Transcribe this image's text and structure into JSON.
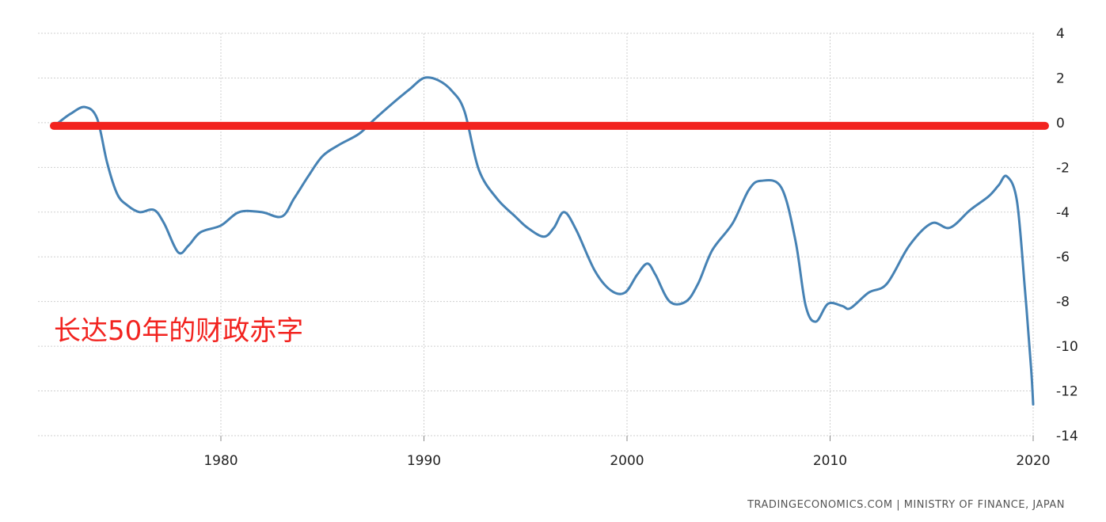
{
  "chart_data": {
    "type": "line",
    "xlim": [
      1971.0,
      2021.0
    ],
    "ylim": [
      -14,
      4
    ],
    "x_ticks": [
      1980,
      1990,
      2000,
      2010,
      2020
    ],
    "y_ticks": [
      4,
      2,
      0,
      -2,
      -4,
      -6,
      -8,
      -10,
      -12,
      -14
    ],
    "grid": true,
    "series": [
      {
        "color": "#4682b4",
        "points": [
          [
            1972.0,
            0.0
          ],
          [
            1972.6,
            0.4
          ],
          [
            1973.3,
            0.7
          ],
          [
            1973.9,
            0.2
          ],
          [
            1974.4,
            -1.8
          ],
          [
            1974.9,
            -3.2
          ],
          [
            1975.4,
            -3.7
          ],
          [
            1976.0,
            -4.0
          ],
          [
            1976.7,
            -3.9
          ],
          [
            1977.2,
            -4.5
          ],
          [
            1977.9,
            -5.8
          ],
          [
            1978.4,
            -5.5
          ],
          [
            1979.0,
            -4.9
          ],
          [
            1980.0,
            -4.6
          ],
          [
            1980.9,
            -4.0
          ],
          [
            1982.0,
            -4.0
          ],
          [
            1983.0,
            -4.2
          ],
          [
            1983.6,
            -3.4
          ],
          [
            1984.3,
            -2.4
          ],
          [
            1985.0,
            -1.5
          ],
          [
            1985.8,
            -1.0
          ],
          [
            1986.8,
            -0.5
          ],
          [
            1987.5,
            0.1
          ],
          [
            1988.5,
            0.9
          ],
          [
            1989.3,
            1.5
          ],
          [
            1990.0,
            2.0
          ],
          [
            1990.7,
            1.9
          ],
          [
            1991.4,
            1.4
          ],
          [
            1992.0,
            0.5
          ],
          [
            1992.7,
            -2.1
          ],
          [
            1993.6,
            -3.4
          ],
          [
            1994.5,
            -4.2
          ],
          [
            1995.1,
            -4.7
          ],
          [
            1995.9,
            -5.1
          ],
          [
            1996.4,
            -4.7
          ],
          [
            1996.9,
            -4.0
          ],
          [
            1997.5,
            -4.8
          ],
          [
            1998.4,
            -6.6
          ],
          [
            1999.2,
            -7.5
          ],
          [
            1999.9,
            -7.6
          ],
          [
            2000.5,
            -6.8
          ],
          [
            2001.0,
            -6.3
          ],
          [
            2001.4,
            -6.8
          ],
          [
            2002.1,
            -8.0
          ],
          [
            2002.9,
            -8.0
          ],
          [
            2003.5,
            -7.2
          ],
          [
            2004.2,
            -5.7
          ],
          [
            2005.2,
            -4.5
          ],
          [
            2006.0,
            -3.0
          ],
          [
            2006.6,
            -2.6
          ],
          [
            2007.6,
            -2.9
          ],
          [
            2008.3,
            -5.3
          ],
          [
            2008.8,
            -8.2
          ],
          [
            2009.3,
            -8.9
          ],
          [
            2009.9,
            -8.1
          ],
          [
            2010.6,
            -8.2
          ],
          [
            2011.0,
            -8.3
          ],
          [
            2011.9,
            -7.6
          ],
          [
            2012.8,
            -7.2
          ],
          [
            2013.9,
            -5.5
          ],
          [
            2015.0,
            -4.5
          ],
          [
            2015.9,
            -4.7
          ],
          [
            2016.9,
            -3.9
          ],
          [
            2017.8,
            -3.3
          ],
          [
            2018.3,
            -2.8
          ],
          [
            2018.7,
            -2.4
          ],
          [
            2019.2,
            -3.5
          ],
          [
            2019.6,
            -7.5
          ],
          [
            2019.9,
            -11.0
          ],
          [
            2020.0,
            -12.6
          ]
        ]
      }
    ],
    "reference_line": {
      "y": 0,
      "color": "#f2231f"
    }
  },
  "annotation": "长达50年的财政赤字",
  "source": "TRADINGECONOMICS.COM  |  MINISTRY OF FINANCE, JAPAN"
}
